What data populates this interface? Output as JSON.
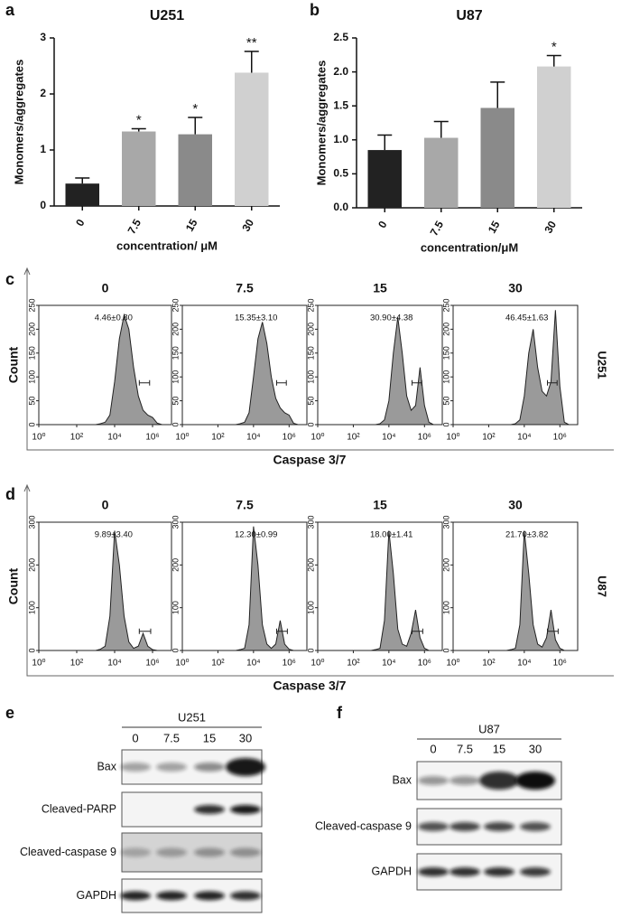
{
  "panel_letters": [
    "a",
    "b",
    "c",
    "d",
    "e",
    "f"
  ],
  "chart_data": [
    {
      "type": "bar",
      "title": "U251",
      "categories": [
        "0",
        "7.5",
        "15",
        "30"
      ],
      "values": [
        0.4,
        1.33,
        1.28,
        2.38
      ],
      "errors": [
        0.1,
        0.05,
        0.3,
        0.38
      ],
      "significance": [
        null,
        "*",
        "*",
        "**"
      ],
      "colors": [
        "#222222",
        "#a8a8a8",
        "#8a8a8a",
        "#d0d0d0"
      ],
      "ylim": [
        0,
        3
      ],
      "yticks": [
        0,
        1,
        2,
        3
      ],
      "ylabel": "Monomers/aggregates",
      "xlabel": "concentration/ μM"
    },
    {
      "type": "bar",
      "title": "U87",
      "categories": [
        "0",
        "7.5",
        "15",
        "30"
      ],
      "values": [
        0.85,
        1.03,
        1.47,
        2.08
      ],
      "errors": [
        0.22,
        0.24,
        0.38,
        0.16
      ],
      "significance": [
        null,
        null,
        null,
        "*"
      ],
      "colors": [
        "#222222",
        "#a8a8a8",
        "#8a8a8a",
        "#d0d0d0"
      ],
      "ylim": [
        0,
        2.5
      ],
      "yticks": [
        {
          "value": 0,
          "label": "0.0"
        },
        0.5,
        {
          "value": 1,
          "label": "1.0"
        },
        1.5,
        {
          "value": 2,
          "label": "2.0"
        },
        2.5
      ],
      "ylabel": "Monomers/aggregates",
      "xlabel": "concentration/μM"
    },
    {
      "type": "area",
      "title": "0",
      "annotation": "4.46±0.80",
      "x": [
        1000,
        1778,
        3162,
        5623,
        10000,
        17783,
        31623,
        56234,
        100000,
        177828,
        316228,
        562341,
        1000000,
        1778279,
        3162278
      ],
      "values": [
        0,
        2,
        5,
        20,
        90,
        180,
        230,
        200,
        120,
        60,
        30,
        20,
        15,
        3,
        0
      ],
      "gate": [
        200000,
        700000
      ],
      "xscale": "log",
      "xlim": [
        1,
        10000000
      ],
      "xticks": [
        {
          "value": 1,
          "label": "10⁰"
        },
        {
          "value": 100,
          "label": "10²"
        },
        {
          "value": 10000,
          "label": "10⁴"
        },
        {
          "value": 1000000,
          "label": "10⁶"
        }
      ],
      "ylim": [
        0,
        250
      ],
      "yticks": [
        0,
        50,
        100,
        150,
        200,
        250
      ],
      "color": "#9a9a9a"
    },
    {
      "type": "area",
      "title": "7.5",
      "annotation": "15.35±3.10",
      "x": [
        1000,
        1778,
        3162,
        5623,
        10000,
        17783,
        31623,
        56234,
        100000,
        177828,
        316228,
        562341,
        1000000,
        1778279,
        3162278
      ],
      "values": [
        0,
        2,
        5,
        25,
        100,
        180,
        215,
        170,
        100,
        55,
        35,
        25,
        20,
        3,
        0
      ],
      "gate": [
        200000,
        700000
      ],
      "xscale": "log",
      "xlim": [
        1,
        10000000
      ],
      "xticks": [
        {
          "value": 1,
          "label": "10⁰"
        },
        {
          "value": 100,
          "label": "10²"
        },
        {
          "value": 10000,
          "label": "10⁴"
        },
        {
          "value": 1000000,
          "label": "10⁶"
        }
      ],
      "ylim": [
        0,
        250
      ],
      "yticks": [
        0,
        50,
        100,
        150,
        200,
        250
      ],
      "color": "#9a9a9a"
    },
    {
      "type": "area",
      "title": "15",
      "annotation": "30.90±4.38",
      "x": [
        1000,
        1778,
        3162,
        5623,
        10000,
        17783,
        31623,
        56234,
        100000,
        177828,
        316228,
        562341,
        1000000,
        1778279,
        3162278
      ],
      "values": [
        0,
        0,
        2,
        10,
        50,
        150,
        225,
        150,
        60,
        30,
        40,
        120,
        40,
        5,
        0
      ],
      "gate": [
        200000,
        700000
      ],
      "xscale": "log",
      "xlim": [
        1,
        10000000
      ],
      "xticks": [
        {
          "value": 1,
          "label": "10⁰"
        },
        {
          "value": 100,
          "label": "10²"
        },
        {
          "value": 10000,
          "label": "10⁴"
        },
        {
          "value": 1000000,
          "label": "10⁶"
        }
      ],
      "ylim": [
        0,
        250
      ],
      "yticks": [
        0,
        50,
        100,
        150,
        200,
        250
      ],
      "color": "#9a9a9a"
    },
    {
      "type": "area",
      "title": "30",
      "annotation": "46.45±1.63",
      "x": [
        1000,
        1778,
        3162,
        5623,
        10000,
        17783,
        31623,
        56234,
        100000,
        177828,
        316228,
        562341,
        1000000,
        1778279,
        3162278
      ],
      "values": [
        0,
        0,
        2,
        10,
        60,
        150,
        200,
        120,
        70,
        60,
        90,
        240,
        80,
        5,
        0
      ],
      "gate": [
        200000,
        700000
      ],
      "xscale": "log",
      "xlim": [
        1,
        10000000
      ],
      "xticks": [
        {
          "value": 1,
          "label": "10⁰"
        },
        {
          "value": 100,
          "label": "10²"
        },
        {
          "value": 10000,
          "label": "10⁴"
        },
        {
          "value": 1000000,
          "label": "10⁶"
        }
      ],
      "ylim": [
        0,
        250
      ],
      "yticks": [
        0,
        50,
        100,
        150,
        200,
        250
      ],
      "color": "#9a9a9a"
    },
    {
      "type": "area",
      "title": "0",
      "annotation": "9.89±3.40",
      "x": [
        1000,
        1778,
        3162,
        5623,
        10000,
        17783,
        31623,
        56234,
        100000,
        177828,
        316228,
        562341,
        1000000,
        1778279,
        3162278
      ],
      "values": [
        0,
        3,
        10,
        80,
        280,
        200,
        80,
        20,
        5,
        10,
        40,
        10,
        2,
        0,
        0
      ],
      "gate": [
        200000,
        800000
      ],
      "xscale": "log",
      "xlim": [
        1,
        10000000
      ],
      "xticks": [
        {
          "value": 1,
          "label": "10⁰"
        },
        {
          "value": 100,
          "label": "10²"
        },
        {
          "value": 10000,
          "label": "10⁴"
        },
        {
          "value": 1000000,
          "label": "10⁶"
        }
      ],
      "ylim": [
        0,
        300
      ],
      "yticks": [
        0,
        100,
        200,
        300
      ],
      "color": "#9a9a9a"
    },
    {
      "type": "area",
      "title": "7.5",
      "annotation": "12.30±0.99",
      "x": [
        1000,
        1778,
        3162,
        5623,
        10000,
        17783,
        31623,
        56234,
        100000,
        177828,
        316228,
        562341,
        1000000,
        1778279,
        3162278
      ],
      "values": [
        0,
        2,
        5,
        60,
        290,
        200,
        60,
        15,
        5,
        15,
        70,
        15,
        3,
        0,
        0
      ],
      "gate": [
        200000,
        800000
      ],
      "xscale": "log",
      "xlim": [
        1,
        10000000
      ],
      "xticks": [
        {
          "value": 1,
          "label": "10⁰"
        },
        {
          "value": 100,
          "label": "10²"
        },
        {
          "value": 10000,
          "label": "10⁴"
        },
        {
          "value": 1000000,
          "label": "10⁶"
        }
      ],
      "ylim": [
        0,
        300
      ],
      "yticks": [
        0,
        100,
        200,
        300
      ],
      "color": "#9a9a9a"
    },
    {
      "type": "area",
      "title": "15",
      "annotation": "18.00±1.41",
      "x": [
        1000,
        1778,
        3162,
        5623,
        10000,
        17783,
        31623,
        56234,
        100000,
        177828,
        316228,
        562341,
        1000000,
        1778279,
        3162278
      ],
      "values": [
        0,
        2,
        5,
        70,
        280,
        180,
        50,
        15,
        10,
        40,
        95,
        30,
        5,
        0,
        0
      ],
      "gate": [
        200000,
        800000
      ],
      "xscale": "log",
      "xlim": [
        1,
        10000000
      ],
      "xticks": [
        {
          "value": 1,
          "label": "10⁰"
        },
        {
          "value": 100,
          "label": "10²"
        },
        {
          "value": 10000,
          "label": "10⁴"
        },
        {
          "value": 1000000,
          "label": "10⁶"
        }
      ],
      "ylim": [
        0,
        300
      ],
      "yticks": [
        0,
        100,
        200,
        300
      ],
      "color": "#9a9a9a"
    },
    {
      "type": "area",
      "title": "30",
      "annotation": "21.70±3.82",
      "x": [
        1000,
        1778,
        3162,
        5623,
        10000,
        17783,
        31623,
        56234,
        100000,
        177828,
        316228,
        562341,
        1000000,
        1778279,
        3162278
      ],
      "values": [
        0,
        2,
        5,
        60,
        280,
        180,
        60,
        15,
        8,
        30,
        95,
        25,
        5,
        0,
        0
      ],
      "gate": [
        200000,
        800000
      ],
      "xscale": "log",
      "xlim": [
        1,
        10000000
      ],
      "xticks": [
        {
          "value": 1,
          "label": "10⁰"
        },
        {
          "value": 100,
          "label": "10²"
        },
        {
          "value": 10000,
          "label": "10⁴"
        },
        {
          "value": 1000000,
          "label": "10⁶"
        }
      ],
      "ylim": [
        0,
        300
      ],
      "yticks": [
        0,
        100,
        200,
        300
      ],
      "color": "#9a9a9a"
    }
  ],
  "flow": [
    {
      "ylabel": "Count",
      "xlabel": "Caspase 3/7",
      "cell_line": "U251"
    },
    {
      "ylabel": "Count",
      "xlabel": "Caspase 3/7",
      "cell_line": "U87"
    }
  ],
  "blots": [
    {
      "cell_line": "U251",
      "lanes": [
        "0",
        "7.5",
        "15",
        "30"
      ],
      "rows": [
        "Bax",
        "Cleaved-PARP",
        "Cleaved-caspase 9",
        "GAPDH"
      ]
    },
    {
      "cell_line": "U87",
      "lanes": [
        "0",
        "7.5",
        "15",
        "30"
      ],
      "rows": [
        "Bax",
        "Cleaved-caspase 9",
        "GAPDH"
      ]
    }
  ]
}
